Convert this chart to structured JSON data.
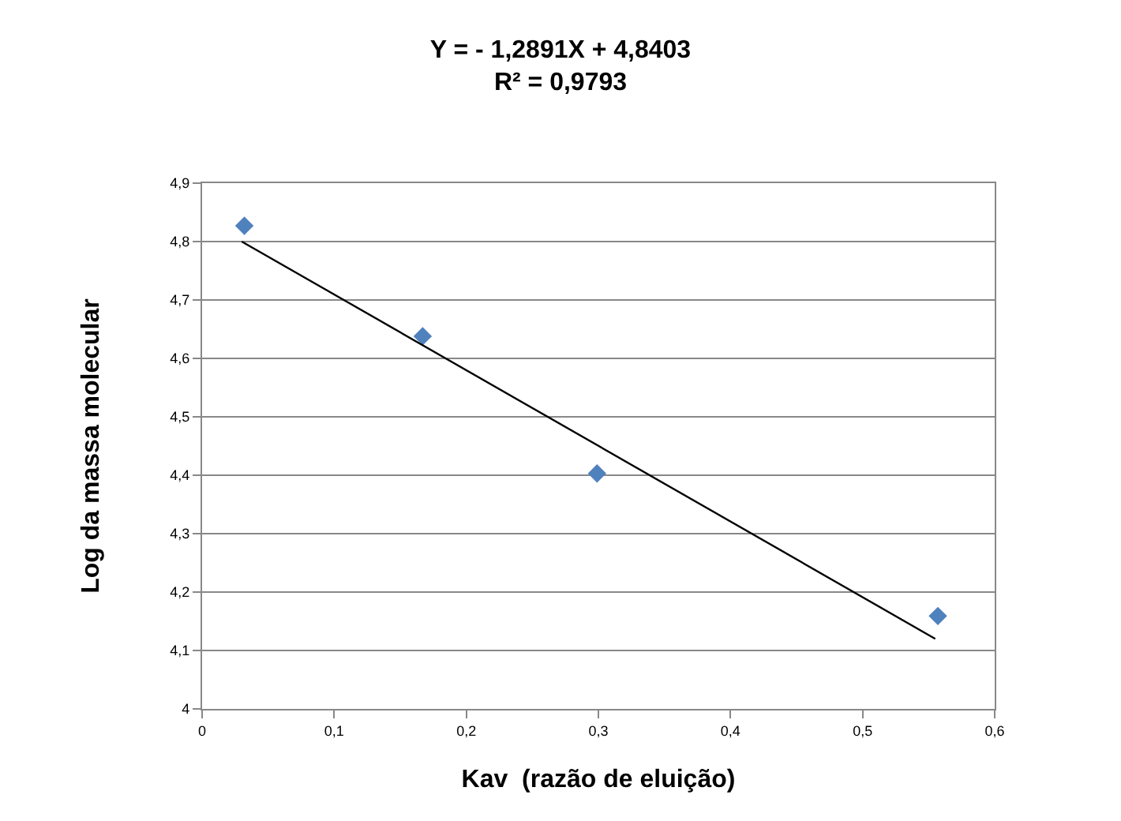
{
  "chart_data": {
    "type": "scatter",
    "title": "Y = - 1,2891X + 4,8403\nR² = 0,9793",
    "xlabel": "Kav  (razão de eluição)",
    "ylabel": "Log da massa molecular",
    "series": [
      {
        "color": "#4f81bd",
        "marker": "diamond",
        "x": [
          0.032,
          0.167,
          0.299,
          0.557
        ],
        "values": [
          4.827,
          4.638,
          4.403,
          4.159
        ]
      },
      {
        "type": "line",
        "color": "#000000",
        "marker": "none",
        "line_style": "solid",
        "x": [
          0.03,
          0.555
        ],
        "values": [
          4.8,
          4.12
        ]
      }
    ],
    "xlim": [
      0,
      0.6
    ],
    "xticks": [
      0,
      {
        "value": 0.1,
        "label": "0,1"
      },
      {
        "value": 0.2,
        "label": "0,2"
      },
      {
        "value": 0.3,
        "label": "0,3"
      },
      {
        "value": 0.4,
        "label": "0,4"
      },
      {
        "value": 0.5,
        "label": "0,5"
      },
      {
        "value": 0.6,
        "label": "0,6"
      }
    ],
    "ylim": [
      4,
      4.9
    ],
    "yticks": [
      4,
      {
        "value": 4.1,
        "label": "4,1"
      },
      {
        "value": 4.2,
        "label": "4,2"
      },
      {
        "value": 4.3,
        "label": "4,3"
      },
      {
        "value": 4.4,
        "label": "4,4"
      },
      {
        "value": 4.5,
        "label": "4,5"
      },
      {
        "value": 4.6,
        "label": "4,6"
      },
      {
        "value": 4.7,
        "label": "4,7"
      },
      {
        "value": 4.8,
        "label": "4,8"
      },
      {
        "value": 4.9,
        "label": "4,9"
      }
    ],
    "grid": "y"
  }
}
